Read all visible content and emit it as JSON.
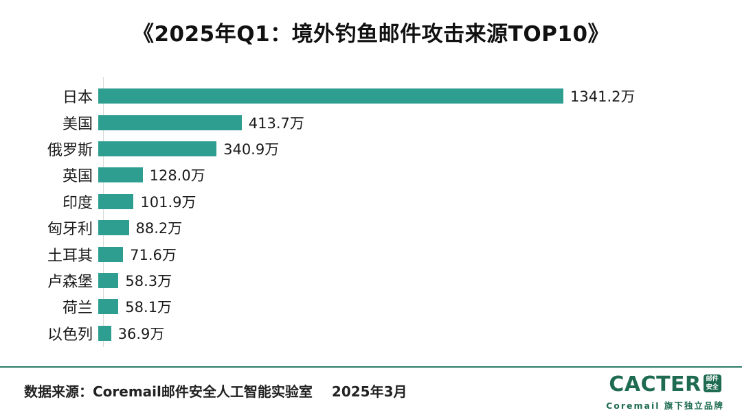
{
  "title": "《2025年Q1：境外钓鱼邮件攻击来源TOP10》",
  "chart_data": {
    "type": "bar",
    "orientation": "horizontal",
    "title": "《2025年Q1：境外钓鱼邮件攻击来源TOP10》",
    "categories": [
      "日本",
      "美国",
      "俄罗斯",
      "英国",
      "印度",
      "匈牙利",
      "土耳其",
      "卢森堡",
      "荷兰",
      "以色列"
    ],
    "values": [
      1341.2,
      413.7,
      340.9,
      128.0,
      101.9,
      88.2,
      71.6,
      58.3,
      58.1,
      36.9
    ],
    "value_labels": [
      "1341.2万",
      "413.7万",
      "340.9万",
      "128.0万",
      "101.9万",
      "88.2万",
      "71.6万",
      "58.3万",
      "58.1万",
      "36.9万"
    ],
    "unit": "万",
    "xlim": [
      0,
      1341.2
    ],
    "bar_color": "#2E9E90",
    "axis_line_color": "#d9d9d9",
    "grid": false,
    "legend": false
  },
  "footer": {
    "source_text": "数据来源：Coremail邮件安全人工智能实验室",
    "date_text": "2025年3月",
    "divider_color": "#2B7A66"
  },
  "logo": {
    "brand": "CACTER",
    "badge_line1": "邮件",
    "badge_line2": "安全",
    "subtitle": "Coremail 旗下独立品牌",
    "color": "#1E6B52"
  }
}
